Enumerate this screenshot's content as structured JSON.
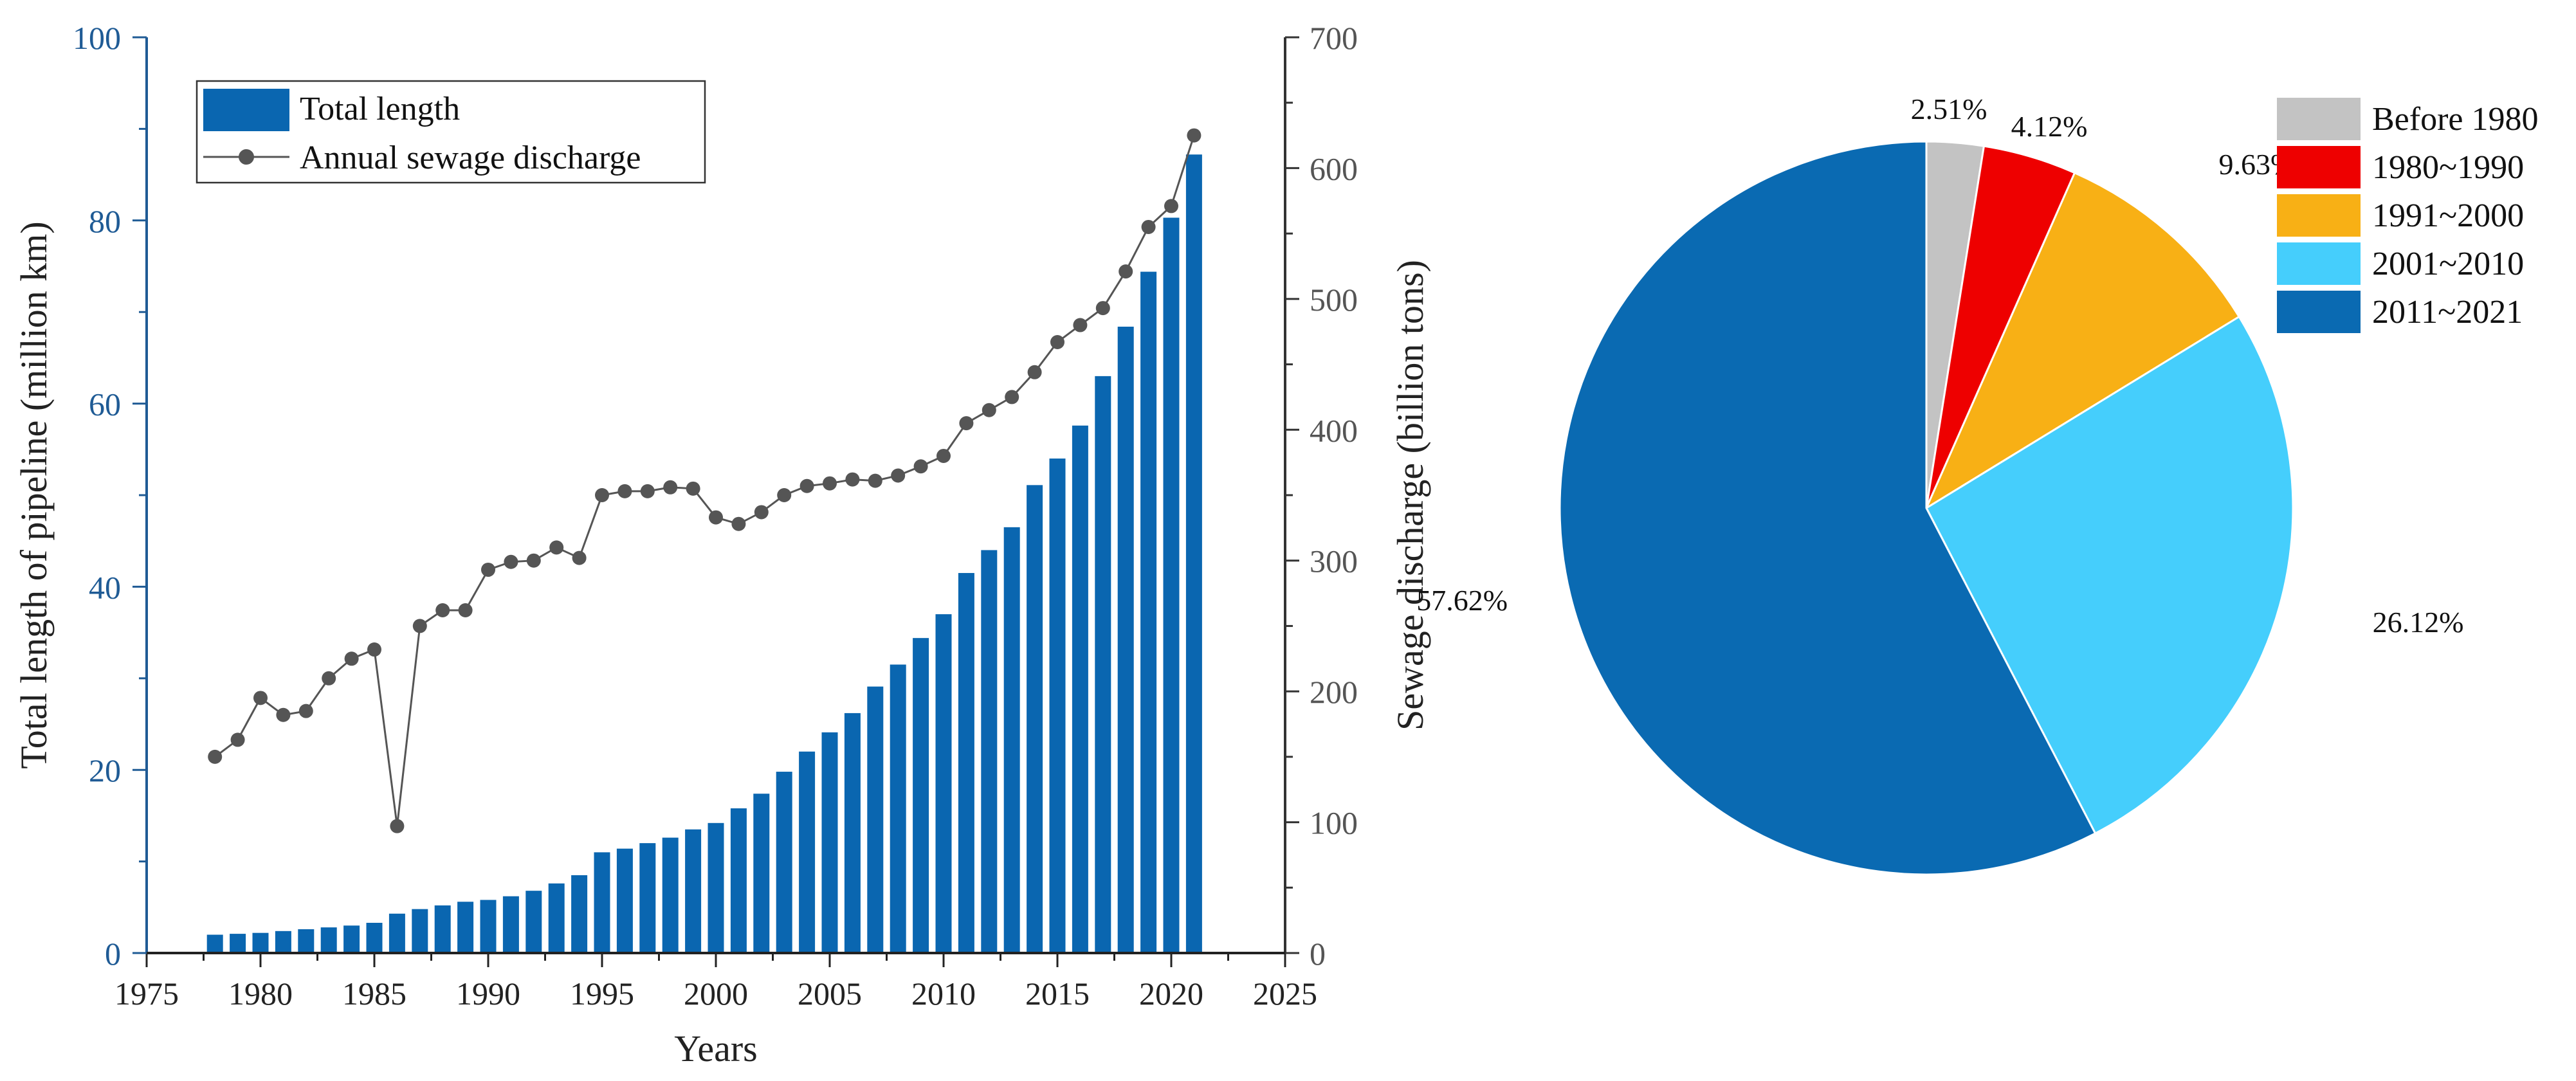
{
  "chart_data": [
    {
      "type": "bar+line",
      "xlabel": "Years",
      "ylabel_left": "Total length of pipeline (million km)",
      "ylabel_right": "Sewage discharge (billion tons)",
      "xlim": [
        1975,
        2025
      ],
      "x_ticks": [
        "1975",
        "1980",
        "1985",
        "1990",
        "1995",
        "2000",
        "2005",
        "2010",
        "2015",
        "2020",
        "2025"
      ],
      "ylim_left": [
        0,
        100
      ],
      "y_ticks_left": [
        "0",
        "20",
        "40",
        "60",
        "80",
        "100"
      ],
      "ylim_right": [
        0,
        700
      ],
      "y_ticks_right": [
        "0",
        "100",
        "200",
        "300",
        "400",
        "500",
        "600",
        "700"
      ],
      "legend": [
        "Total length",
        "Annual sewage discharge"
      ],
      "x": [
        1978,
        1979,
        1980,
        1981,
        1982,
        1983,
        1984,
        1985,
        1986,
        1987,
        1988,
        1989,
        1990,
        1991,
        1992,
        1993,
        1994,
        1995,
        1996,
        1997,
        1998,
        1999,
        2000,
        2001,
        2002,
        2003,
        2004,
        2005,
        2006,
        2007,
        2008,
        2009,
        2010,
        2011,
        2012,
        2013,
        2014,
        2015,
        2016,
        2017,
        2018,
        2019,
        2020,
        2021
      ],
      "series": [
        {
          "name": "Total length",
          "axis": "left",
          "values": [
            2.0,
            2.1,
            2.2,
            2.4,
            2.6,
            2.8,
            3.0,
            3.3,
            4.3,
            4.8,
            5.2,
            5.6,
            5.8,
            6.2,
            6.8,
            7.6,
            8.5,
            11.0,
            11.4,
            12.0,
            12.6,
            13.5,
            14.2,
            15.8,
            17.4,
            19.8,
            22.0,
            24.1,
            26.2,
            29.1,
            31.5,
            34.4,
            37.0,
            41.5,
            44.0,
            46.5,
            51.1,
            54.0,
            57.6,
            63.0,
            68.4,
            74.4,
            80.3,
            87.2
          ],
          "color": "#0A66B0"
        },
        {
          "name": "Annual sewage discharge",
          "axis": "right",
          "values": [
            150,
            163,
            195,
            182,
            185,
            210,
            225,
            232,
            97,
            250,
            262,
            262,
            293,
            299,
            300,
            310,
            302,
            350,
            353,
            353,
            356,
            355,
            333,
            328,
            337,
            350,
            357,
            359,
            362,
            361,
            365,
            372,
            380,
            405,
            415,
            425,
            444,
            467,
            480,
            493,
            521,
            555,
            571,
            625
          ],
          "color": "#555555"
        }
      ]
    },
    {
      "type": "pie",
      "legend_entries": [
        "Before 1980",
        "1980~1990",
        "1991~2000",
        "2001~2010",
        "2011~2021"
      ],
      "values": [
        2.51,
        4.12,
        9.63,
        26.12,
        57.62
      ],
      "labels": [
        "2.51%",
        "4.12%",
        "9.63%",
        "26.12%",
        "57.62%"
      ],
      "colors": [
        "#C3C3C3",
        "#EE0000",
        "#F8B015",
        "#45CEFC",
        "#0A6AB2"
      ]
    }
  ]
}
